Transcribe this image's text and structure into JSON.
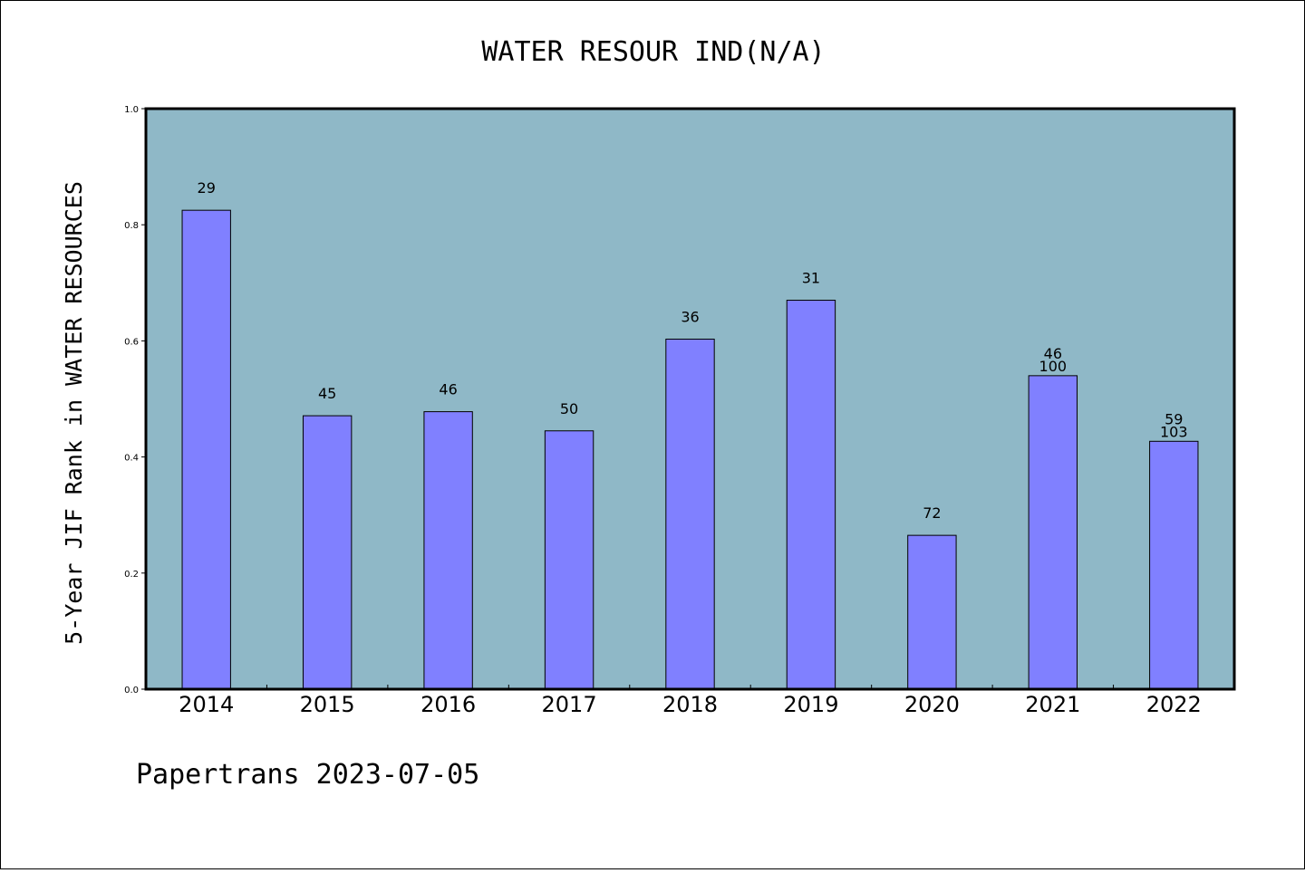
{
  "chart_data": {
    "type": "bar",
    "title": "WATER RESOUR IND(N/A)",
    "xlabel": "",
    "ylabel": "5-Year JIF Rank in WATER RESOURCES",
    "ylim": [
      0,
      1.0
    ],
    "yticks": [
      "0.0",
      "0.2",
      "0.4",
      "0.6",
      "0.8",
      "1.0"
    ],
    "categories": [
      "2014",
      "2015",
      "2016",
      "2017",
      "2018",
      "2019",
      "2020",
      "2021",
      "2022"
    ],
    "values": [
      0.825,
      0.471,
      0.478,
      0.445,
      0.603,
      0.67,
      0.265,
      0.54,
      0.427
    ],
    "labels_top": [
      "29",
      "45",
      "46",
      "50",
      "36",
      "31",
      "72",
      "46",
      "59"
    ],
    "labels_bottom": [
      "",
      "",
      "",
      "",
      "",
      "",
      "",
      "100",
      "103"
    ],
    "grid": false,
    "colors": {
      "plot_bg": "#8fb8c7",
      "bar": "#8080ff"
    }
  },
  "footer": "Papertrans 2023-07-05"
}
